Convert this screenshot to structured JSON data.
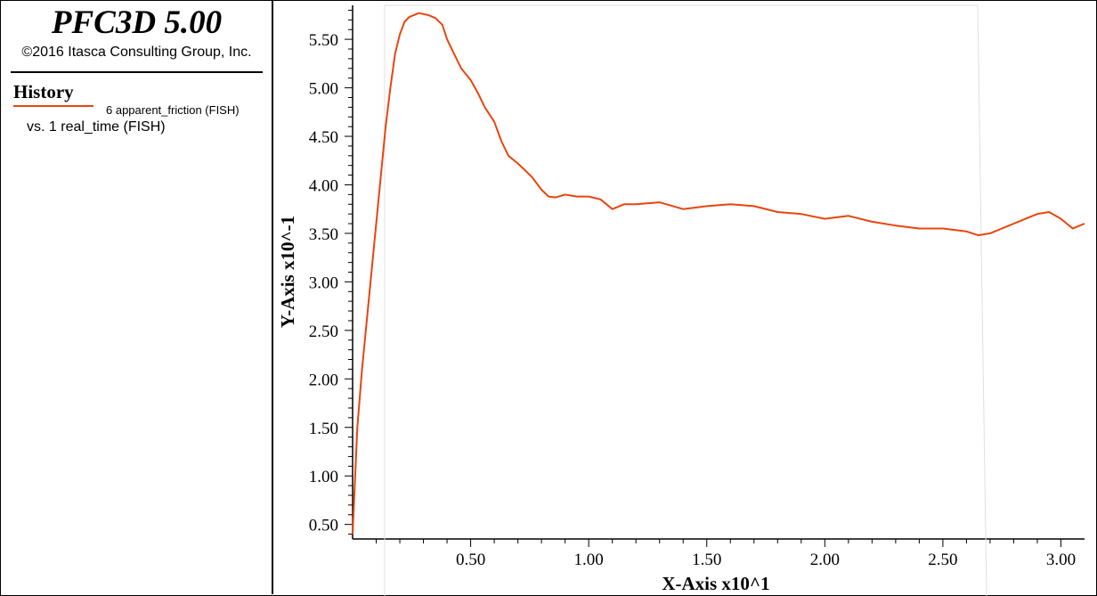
{
  "header": {
    "app_title": "PFC3D 5.00",
    "copyright": "©2016 Itasca Consulting Group, Inc."
  },
  "legend": {
    "section_title": "History",
    "series_label": "6 apparent_friction (FISH)",
    "vs_label": "vs. 1 real_time (FISH)",
    "series_color": "#e8450e"
  },
  "chart_data": {
    "type": "line",
    "xlabel": "X-Axis x10^1",
    "ylabel": "Y-Axis x10^-1",
    "xlim": [
      0,
      3.1
    ],
    "ylim": [
      0.35,
      5.85
    ],
    "x_ticks": [
      "0.50",
      "1.00",
      "1.50",
      "2.00",
      "2.50",
      "3.00"
    ],
    "y_ticks": [
      "0.50",
      "1.00",
      "1.50",
      "2.00",
      "2.50",
      "3.00",
      "3.50",
      "4.00",
      "4.50",
      "5.00",
      "5.50"
    ],
    "grid": false,
    "series": [
      {
        "color": "#e8450e",
        "x": [
          0.0,
          0.02,
          0.04,
          0.06,
          0.08,
          0.1,
          0.12,
          0.14,
          0.16,
          0.18,
          0.2,
          0.22,
          0.24,
          0.26,
          0.28,
          0.3,
          0.32,
          0.35,
          0.38,
          0.4,
          0.43,
          0.46,
          0.5,
          0.53,
          0.56,
          0.6,
          0.63,
          0.66,
          0.7,
          0.73,
          0.76,
          0.8,
          0.83,
          0.86,
          0.9,
          0.95,
          1.0,
          1.05,
          1.1,
          1.15,
          1.2,
          1.3,
          1.4,
          1.5,
          1.6,
          1.7,
          1.8,
          1.9,
          2.0,
          2.1,
          2.2,
          2.3,
          2.4,
          2.5,
          2.6,
          2.65,
          2.7,
          2.75,
          2.8,
          2.85,
          2.9,
          2.95,
          3.0,
          3.05,
          3.1
        ],
        "y": [
          0.4,
          1.5,
          2.1,
          2.6,
          3.1,
          3.6,
          4.1,
          4.6,
          5.0,
          5.35,
          5.55,
          5.68,
          5.73,
          5.75,
          5.77,
          5.76,
          5.75,
          5.72,
          5.65,
          5.5,
          5.35,
          5.2,
          5.08,
          4.95,
          4.8,
          4.65,
          4.45,
          4.3,
          4.22,
          4.15,
          4.08,
          3.95,
          3.88,
          3.87,
          3.9,
          3.88,
          3.88,
          3.85,
          3.75,
          3.8,
          3.8,
          3.82,
          3.75,
          3.78,
          3.8,
          3.78,
          3.72,
          3.7,
          3.65,
          3.68,
          3.62,
          3.58,
          3.55,
          3.55,
          3.52,
          3.48,
          3.5,
          3.55,
          3.6,
          3.65,
          3.7,
          3.72,
          3.65,
          3.55,
          3.6
        ]
      }
    ]
  }
}
